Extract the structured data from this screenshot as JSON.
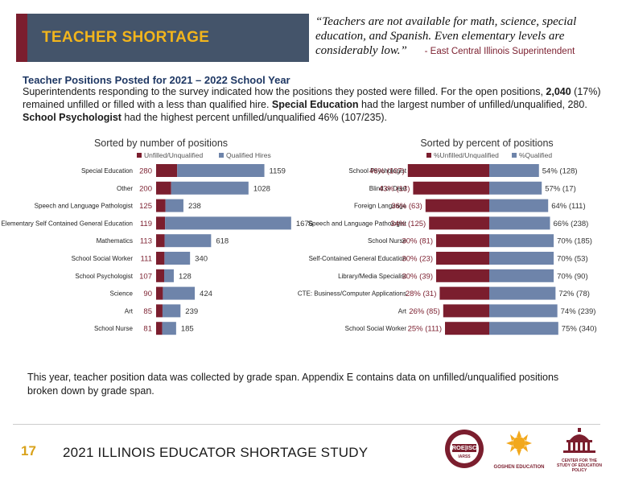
{
  "banner": {
    "title": "TEACHER SHORTAGE"
  },
  "quote": {
    "text": "“Teachers are not available for math, science, special education, and Spanish. Even elementary levels are considerably low.”",
    "attribution": "- East Central Illinois Superintendent"
  },
  "section": {
    "title": "Teacher Positions Posted for 2021 – 2022 School Year"
  },
  "intro": {
    "p1": "Superintendents responding to the survey indicated how the positions they posted were filled. For the open positions, ",
    "b1": "2,040",
    "p2": " (17%) remained unfilled or filled with a less than qualified hire. ",
    "b2": "Special Education",
    "p3": " had the largest number of unfilled/unqualified, 280. ",
    "b3": "School Psychologist",
    "p4": " had the highest percent unfilled/unqualified 46% (107/235)."
  },
  "colors": {
    "unfilled": "#7b1e2e",
    "qualified": "#6e84aa",
    "accent": "#f2b51c"
  },
  "chart_data": [
    {
      "type": "bar",
      "orientation": "horizontal",
      "stacked": true,
      "title": "Sorted by number of positions",
      "categories": [
        "Special Education",
        "Other",
        "Speech and Language Pathologist",
        "Elementary Self Contained General Education",
        "Mathematics",
        "School Social Worker",
        "School Psychologist",
        "Science",
        "Art",
        "School Nurse"
      ],
      "series": [
        {
          "name": "Unfilled/Unqualified",
          "values": [
            280,
            200,
            125,
            119,
            113,
            111,
            107,
            90,
            85,
            81
          ]
        },
        {
          "name": "Qualified Hires",
          "values": [
            1159,
            1028,
            238,
            1676,
            618,
            340,
            128,
            424,
            239,
            185
          ]
        }
      ],
      "legend": "top"
    },
    {
      "type": "bar",
      "orientation": "horizontal",
      "stacked": true,
      "title": "Sorted by percent of positions",
      "categories": [
        "School Psychologist",
        "Blind or Deaf",
        "Foreign Language",
        "Speech and Language Pathologist",
        "School Nurse",
        "Self-Contained General Education",
        "Library/Media Specialist",
        "CTE: Business/Computer Applications",
        "Art",
        "School Social Worker"
      ],
      "series": [
        {
          "name": "%Unfilled/Unqualified",
          "values": [
            46,
            43,
            36,
            34,
            30,
            30,
            30,
            28,
            26,
            25
          ],
          "counts": [
            107,
            13,
            63,
            125,
            81,
            23,
            39,
            31,
            85,
            111
          ]
        },
        {
          "name": "%Qualified",
          "values": [
            54,
            57,
            64,
            66,
            70,
            70,
            70,
            72,
            74,
            75
          ],
          "counts": [
            128,
            17,
            111,
            238,
            185,
            53,
            90,
            78,
            239,
            340
          ]
        }
      ],
      "legend": "top"
    }
  ],
  "note": "This year, teacher position data was collected by grade span. Appendix E contains data on unfilled/unqualified positions broken down by grade span.",
  "footer": {
    "page_number": "17",
    "title": "2021 ILLINOIS EDUCATOR SHORTAGE STUDY",
    "logo1": "ROE|ISC",
    "logo1_sub": "IARSS",
    "logo2": "GOSHEN EDUCATION",
    "logo3": "CENTER FOR THE STUDY OF EDUCATION POLICY"
  }
}
